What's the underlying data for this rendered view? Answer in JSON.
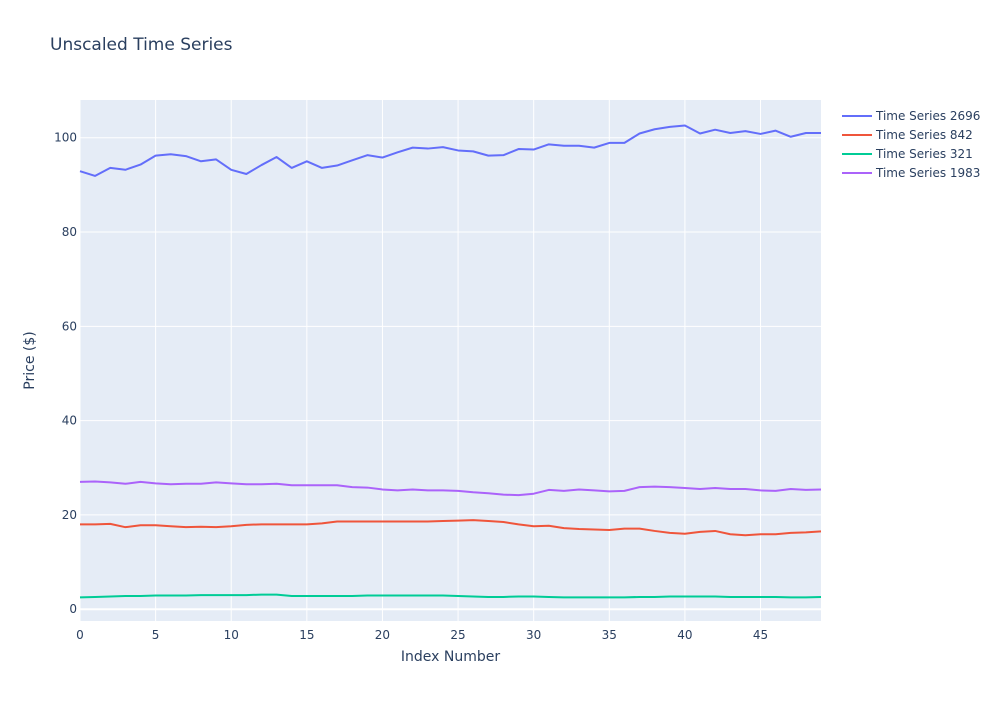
{
  "chart_data": {
    "type": "line",
    "title": "Unscaled Time Series",
    "xlabel": "Index Number",
    "ylabel": "Price ($)",
    "xlim": [
      0,
      49
    ],
    "ylim": [
      -2.5,
      108
    ],
    "x_ticks": [
      0,
      5,
      10,
      15,
      20,
      25,
      30,
      35,
      40,
      45
    ],
    "y_ticks": [
      0,
      20,
      40,
      60,
      80,
      100
    ],
    "grid": true,
    "legend_position": "top-right",
    "x": [
      0,
      1,
      2,
      3,
      4,
      5,
      6,
      7,
      8,
      9,
      10,
      11,
      12,
      13,
      14,
      15,
      16,
      17,
      18,
      19,
      20,
      21,
      22,
      23,
      24,
      25,
      26,
      27,
      28,
      29,
      30,
      31,
      32,
      33,
      34,
      35,
      36,
      37,
      38,
      39,
      40,
      41,
      42,
      43,
      44,
      45,
      46,
      47,
      48,
      49
    ],
    "series": [
      {
        "name": "Time Series 2696",
        "color": "#636efa",
        "values": [
          92.9,
          91.9,
          93.6,
          93.2,
          94.3,
          96.2,
          96.5,
          96.1,
          95.0,
          95.4,
          93.2,
          92.3,
          94.2,
          95.9,
          93.6,
          95.0,
          93.6,
          94.1,
          95.2,
          96.3,
          95.8,
          96.9,
          97.9,
          97.7,
          98.0,
          97.3,
          97.1,
          96.2,
          96.3,
          97.6,
          97.5,
          98.6,
          98.3,
          98.3,
          97.9,
          98.9,
          98.9,
          100.9,
          101.8,
          102.3,
          102.6,
          100.9,
          101.7,
          101.0,
          101.4,
          100.8,
          101.5,
          100.2,
          101.0,
          101.0
        ]
      },
      {
        "name": "Time Series 842",
        "color": "#ef553b",
        "values": [
          18.0,
          18.0,
          18.1,
          17.4,
          17.8,
          17.8,
          17.6,
          17.4,
          17.5,
          17.4,
          17.6,
          17.9,
          18.0,
          18.0,
          18.0,
          18.0,
          18.2,
          18.6,
          18.6,
          18.6,
          18.6,
          18.6,
          18.6,
          18.6,
          18.7,
          18.8,
          18.9,
          18.7,
          18.5,
          18.0,
          17.6,
          17.7,
          17.2,
          17.0,
          16.9,
          16.8,
          17.1,
          17.1,
          16.6,
          16.2,
          16.0,
          16.4,
          16.6,
          15.9,
          15.7,
          15.9,
          15.9,
          16.2,
          16.3,
          16.5
        ]
      },
      {
        "name": "Time Series 321",
        "color": "#00cc96",
        "values": [
          2.5,
          2.6,
          2.7,
          2.8,
          2.8,
          2.9,
          2.9,
          2.9,
          3.0,
          3.0,
          3.0,
          3.0,
          3.1,
          3.1,
          2.8,
          2.8,
          2.8,
          2.8,
          2.8,
          2.9,
          2.9,
          2.9,
          2.9,
          2.9,
          2.9,
          2.8,
          2.7,
          2.6,
          2.6,
          2.7,
          2.7,
          2.6,
          2.5,
          2.5,
          2.5,
          2.5,
          2.5,
          2.6,
          2.6,
          2.7,
          2.7,
          2.7,
          2.7,
          2.6,
          2.6,
          2.6,
          2.6,
          2.5,
          2.5,
          2.6
        ]
      },
      {
        "name": "Time Series 1983",
        "color": "#ab63fa",
        "values": [
          27.0,
          27.1,
          26.9,
          26.6,
          27.0,
          26.7,
          26.5,
          26.6,
          26.6,
          26.9,
          26.7,
          26.5,
          26.5,
          26.6,
          26.3,
          26.3,
          26.3,
          26.3,
          25.9,
          25.8,
          25.4,
          25.2,
          25.4,
          25.2,
          25.2,
          25.1,
          24.8,
          24.6,
          24.3,
          24.2,
          24.5,
          25.3,
          25.1,
          25.4,
          25.2,
          25.0,
          25.1,
          25.9,
          26.0,
          25.9,
          25.7,
          25.5,
          25.7,
          25.5,
          25.5,
          25.2,
          25.1,
          25.5,
          25.3,
          25.4
        ]
      }
    ]
  }
}
